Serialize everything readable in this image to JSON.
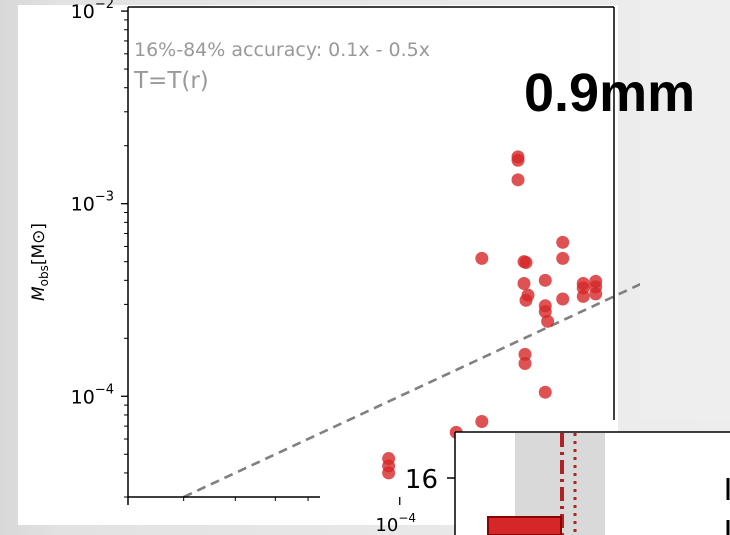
{
  "big_label": "0.9mm",
  "chart_data": {
    "type": "scatter",
    "xscale": "log",
    "yscale": "log",
    "xlim": [
      2.2e-05,
      0.00033
    ],
    "ylim": [
      3e-05,
      0.0105
    ],
    "ylabel": "M_obs [M⊙]",
    "ylabel_main": "M",
    "ylabel_sub": "obs",
    "ylabel_unit": "[M⊙]",
    "y_ticks": [
      {
        "value": 0.01,
        "base": "10",
        "exp": "−2"
      },
      {
        "value": 0.001,
        "base": "10",
        "exp": "−3"
      },
      {
        "value": 0.0001,
        "base": "10",
        "exp": "−4"
      }
    ],
    "x_ticks": [
      {
        "value": 0.0001,
        "base": "10",
        "exp": "−4"
      }
    ],
    "annotation_accuracy": "16%-84% accuracy: 0.1x - 0.5x",
    "annotation_model": "T=T(r)",
    "reference_line": "1:1",
    "marker_color": "#d62728",
    "reference_color": "#808080",
    "points": [
      {
        "x": 9.4e-05,
        "y": 4.75e-05
      },
      {
        "x": 9.4e-05,
        "y": 4.35e-05
      },
      {
        "x": 9.4e-05,
        "y": 4e-05
      },
      {
        "x": 0.000137,
        "y": 6.5e-05
      },
      {
        "x": 0.000158,
        "y": 7.4e-05
      },
      {
        "x": 0.000158,
        "y": 0.00052
      },
      {
        "x": 0.000225,
        "y": 0.000105
      },
      {
        "x": 0.000225,
        "y": 0.0004
      },
      {
        "x": 0.000225,
        "y": 0.000295
      },
      {
        "x": 0.000225,
        "y": 0.000275
      },
      {
        "x": 0.000228,
        "y": 0.000245
      },
      {
        "x": 0.000248,
        "y": 0.00063
      },
      {
        "x": 0.000248,
        "y": 0.00052
      },
      {
        "x": 0.000248,
        "y": 0.00032
      },
      {
        "x": 0.000278,
        "y": 0.000385
      },
      {
        "x": 0.000278,
        "y": 0.000365
      },
      {
        "x": 0.000278,
        "y": 0.00033
      },
      {
        "x": 0.000298,
        "y": 0.000395
      },
      {
        "x": 0.000298,
        "y": 0.00037
      },
      {
        "x": 0.000298,
        "y": 0.00034
      }
    ],
    "clipped_points_right": [
      {
        "y": 0.00175
      },
      {
        "y": 0.00168
      },
      {
        "y": 0.00133
      },
      {
        "y": 0.0005
      },
      {
        "y": 0.000495
      },
      {
        "y": 0.000385
      },
      {
        "y": 0.000335
      },
      {
        "y": 0.000315
      },
      {
        "y": 0.000165
      },
      {
        "y": 0.000148
      }
    ]
  },
  "inset": {
    "tick_label": "16",
    "bar_color": "#d62728",
    "band_color": "#d9d9d9",
    "line_color": "#b22222"
  }
}
